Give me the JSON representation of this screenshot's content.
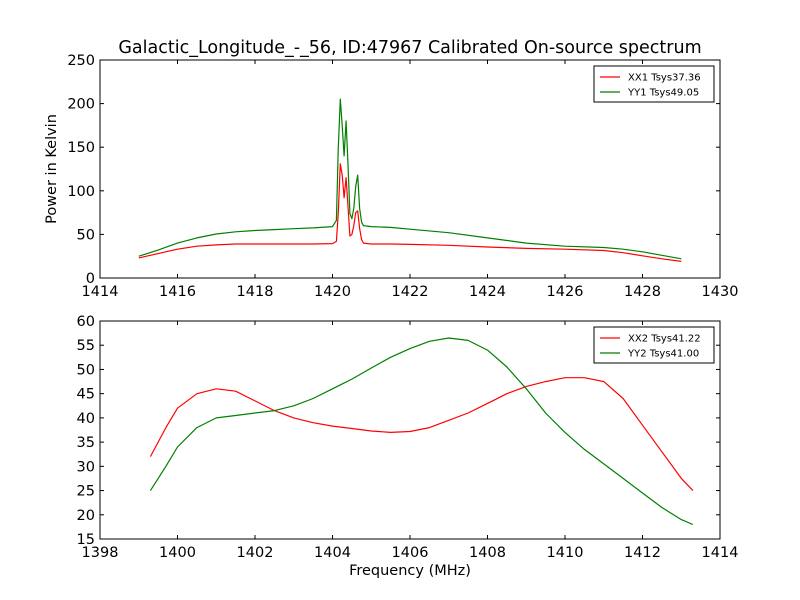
{
  "chart_data": [
    {
      "type": "line",
      "title": "Galactic_Longitude_-_56, ID:47967 Calibrated On-source spectrum",
      "xlabel": "",
      "ylabel": "Power in Kelvin",
      "xlim": [
        1414,
        1430
      ],
      "ylim": [
        0,
        250
      ],
      "xticks": [
        1414,
        1416,
        1418,
        1420,
        1422,
        1424,
        1426,
        1428,
        1430
      ],
      "yticks": [
        0,
        50,
        100,
        150,
        200,
        250
      ],
      "grid": false,
      "legend": "top-right",
      "series": [
        {
          "name": "XX1 Tsys37.36",
          "color": "#ff0000",
          "x": [
            1415.0,
            1415.5,
            1416.0,
            1416.5,
            1417.0,
            1417.5,
            1418.0,
            1418.5,
            1419.0,
            1419.5,
            1420.0,
            1420.1,
            1420.15,
            1420.2,
            1420.25,
            1420.3,
            1420.35,
            1420.4,
            1420.45,
            1420.5,
            1420.55,
            1420.6,
            1420.65,
            1420.7,
            1420.75,
            1420.8,
            1420.9,
            1421.0,
            1421.5,
            1422.0,
            1423.0,
            1424.0,
            1425.0,
            1426.0,
            1427.0,
            1427.5,
            1428.0,
            1428.5,
            1429.0
          ],
          "y": [
            23,
            28,
            33,
            36.5,
            38,
            39,
            39,
            39,
            39,
            39,
            39.5,
            42,
            75,
            131,
            118,
            92,
            115,
            82,
            48,
            50,
            60,
            75,
            77,
            57,
            44,
            40,
            39.5,
            39,
            39,
            38.5,
            37.5,
            35.5,
            34,
            33,
            31.5,
            29,
            25.5,
            22,
            19
          ]
        },
        {
          "name": "YY1 Tsys49.05",
          "color": "#008000",
          "x": [
            1415.0,
            1415.5,
            1416.0,
            1416.5,
            1417.0,
            1417.5,
            1418.0,
            1418.5,
            1419.0,
            1419.5,
            1420.0,
            1420.1,
            1420.15,
            1420.2,
            1420.25,
            1420.3,
            1420.35,
            1420.4,
            1420.45,
            1420.5,
            1420.55,
            1420.6,
            1420.65,
            1420.7,
            1420.75,
            1420.8,
            1420.9,
            1421.0,
            1421.5,
            1422.0,
            1423.0,
            1424.0,
            1425.0,
            1426.0,
            1427.0,
            1427.5,
            1428.0,
            1428.5,
            1429.0
          ],
          "y": [
            25,
            32,
            40,
            46,
            50.5,
            53,
            54.5,
            55.5,
            56.5,
            57.5,
            59,
            66,
            150,
            205,
            175,
            140,
            180,
            130,
            74,
            68,
            80,
            105,
            118,
            80,
            64,
            60,
            59.5,
            59,
            58,
            56,
            52,
            46,
            40,
            36.5,
            35,
            33,
            30,
            26,
            22
          ]
        }
      ]
    },
    {
      "type": "line",
      "title": "",
      "xlabel": "Frequency (MHz)",
      "ylabel": "",
      "xlim": [
        1398,
        1414
      ],
      "ylim": [
        15,
        60
      ],
      "xticks": [
        1398,
        1400,
        1402,
        1404,
        1406,
        1408,
        1410,
        1412,
        1414
      ],
      "yticks": [
        15,
        20,
        25,
        30,
        35,
        40,
        45,
        50,
        55,
        60
      ],
      "grid": false,
      "legend": "top-right",
      "series": [
        {
          "name": "XX2 Tsys41.22",
          "color": "#ff0000",
          "x": [
            1399.3,
            1399.7,
            1400.0,
            1400.5,
            1401.0,
            1401.5,
            1402.0,
            1402.5,
            1403.0,
            1403.5,
            1404.0,
            1404.5,
            1405.0,
            1405.5,
            1406.0,
            1406.5,
            1407.0,
            1407.5,
            1408.0,
            1408.5,
            1409.0,
            1409.5,
            1410.0,
            1410.5,
            1411.0,
            1411.5,
            1412.0,
            1412.5,
            1413.0,
            1413.3
          ],
          "y": [
            32,
            38,
            42,
            45,
            46,
            45.5,
            43.5,
            41.5,
            40,
            39,
            38.3,
            37.8,
            37.3,
            37,
            37.2,
            38,
            39.5,
            41,
            43,
            45,
            46.5,
            47.5,
            48.3,
            48.3,
            47.5,
            44,
            38.5,
            33,
            27.5,
            25
          ]
        },
        {
          "name": "YY2 Tsys41.00",
          "color": "#008000",
          "x": [
            1399.3,
            1399.7,
            1400.0,
            1400.5,
            1401.0,
            1401.5,
            1402.0,
            1402.5,
            1403.0,
            1403.5,
            1404.0,
            1404.5,
            1405.0,
            1405.5,
            1406.0,
            1406.5,
            1407.0,
            1407.5,
            1408.0,
            1408.5,
            1409.0,
            1409.5,
            1410.0,
            1410.5,
            1411.0,
            1411.5,
            1412.0,
            1412.5,
            1413.0,
            1413.3
          ],
          "y": [
            25,
            30,
            34,
            38,
            40,
            40.5,
            41,
            41.5,
            42.5,
            44,
            46,
            48,
            50.3,
            52.5,
            54.3,
            55.8,
            56.5,
            56,
            54,
            50.5,
            46,
            41,
            37,
            33.5,
            30.5,
            27.5,
            24.5,
            21.5,
            19,
            18
          ]
        }
      ]
    }
  ]
}
